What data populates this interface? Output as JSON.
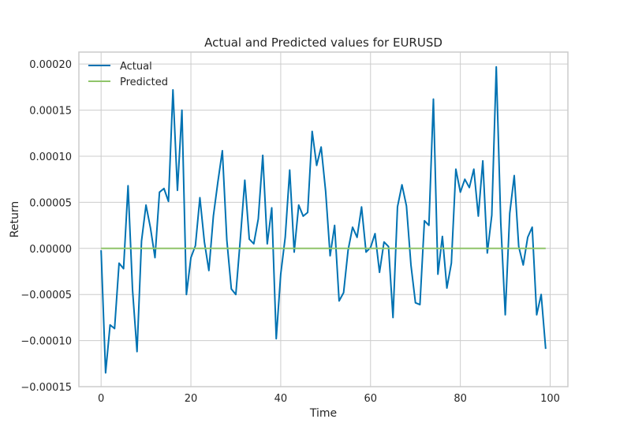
{
  "chart_data": {
    "type": "line",
    "title": "Actual and Predicted values for EURUSD",
    "xlabel": "Time",
    "ylabel": "Return",
    "xlim": [
      -4.95,
      103.95
    ],
    "ylim": [
      -0.00015,
      0.000213
    ],
    "x_ticks": [
      0,
      20,
      40,
      60,
      80,
      100
    ],
    "x_tick_labels": [
      "0",
      "20",
      "40",
      "60",
      "80",
      "100"
    ],
    "y_ticks": [
      -0.00015,
      -0.0001,
      -5e-05,
      0,
      5e-05,
      0.0001,
      0.00015,
      0.0002
    ],
    "y_tick_labels": [
      "−0.00015",
      "−0.00010",
      "−0.00005",
      "0.00000",
      "0.00005",
      "0.00010",
      "0.00015",
      "0.00020"
    ],
    "grid": true,
    "legend_position": "top-left",
    "x": [
      0,
      1,
      2,
      3,
      4,
      5,
      6,
      7,
      8,
      9,
      10,
      11,
      12,
      13,
      14,
      15,
      16,
      17,
      18,
      19,
      20,
      21,
      22,
      23,
      24,
      25,
      26,
      27,
      28,
      29,
      30,
      31,
      32,
      33,
      34,
      35,
      36,
      37,
      38,
      39,
      40,
      41,
      42,
      43,
      44,
      45,
      46,
      47,
      48,
      49,
      50,
      51,
      52,
      53,
      54,
      55,
      56,
      57,
      58,
      59,
      60,
      61,
      62,
      63,
      64,
      65,
      66,
      67,
      68,
      69,
      70,
      71,
      72,
      73,
      74,
      75,
      76,
      77,
      78,
      79,
      80,
      81,
      82,
      83,
      84,
      85,
      86,
      87,
      88,
      89,
      90,
      91,
      92,
      93,
      94,
      95,
      96,
      97,
      98,
      99
    ],
    "series": [
      {
        "name": "Actual",
        "color": "#0072b2",
        "values": [
          -2e-06,
          -0.000135,
          -8.3e-05,
          -8.7e-05,
          -1.6e-05,
          -2.2e-05,
          6.8e-05,
          -4.5e-05,
          -0.000112,
          8e-06,
          4.7e-05,
          2.2e-05,
          -1e-05,
          6.1e-05,
          6.5e-05,
          5.1e-05,
          0.000172,
          6.3e-05,
          0.00015,
          -5e-05,
          -1e-05,
          3e-06,
          5.5e-05,
          7e-06,
          -2.4e-05,
          3.5e-05,
          7.2e-05,
          0.000106,
          9e-06,
          -4.4e-05,
          -5e-05,
          1e-05,
          7.4e-05,
          1e-05,
          5e-06,
          3.2e-05,
          0.000101,
          5e-06,
          4.4e-05,
          -9.8e-05,
          -2.8e-05,
          1.2e-05,
          8.5e-05,
          -4e-06,
          4.7e-05,
          3.5e-05,
          3.9e-05,
          0.000127,
          9e-05,
          0.00011,
          6.2e-05,
          -8e-06,
          2.5e-05,
          -5.7e-05,
          -4.8e-05,
          -2e-06,
          2.3e-05,
          1.2e-05,
          4.5e-05,
          -4e-06,
          1e-06,
          1.6e-05,
          -2.6e-05,
          7e-06,
          2e-06,
          -7.5e-05,
          4.5e-05,
          6.9e-05,
          4.6e-05,
          -1.8e-05,
          -5.9e-05,
          -6.1e-05,
          3e-05,
          2.5e-05,
          0.000162,
          -2.8e-05,
          1.3e-05,
          -4.3e-05,
          -1.6e-05,
          8.6e-05,
          6.1e-05,
          7.5e-05,
          6.6e-05,
          8.6e-05,
          3.5e-05,
          9.5e-05,
          -5e-06,
          3.6e-05,
          0.000197,
          2.8e-05,
          -7.2e-05,
          3.8e-05,
          7.9e-05,
          2e-06,
          -1.8e-05,
          1.2e-05,
          2.3e-05,
          -7.2e-05,
          -5e-05,
          -0.000109
        ]
      },
      {
        "name": "Predicted",
        "color": "#8fc46a",
        "values": [
          0,
          0,
          0,
          0,
          0,
          0,
          0,
          0,
          0,
          0,
          0,
          0,
          0,
          0,
          0,
          0,
          0,
          0,
          0,
          0,
          0,
          0,
          0,
          0,
          0,
          0,
          0,
          0,
          0,
          0,
          0,
          0,
          0,
          0,
          0,
          0,
          0,
          0,
          0,
          0,
          0,
          0,
          0,
          0,
          0,
          0,
          0,
          0,
          0,
          0,
          0,
          0,
          0,
          0,
          0,
          0,
          0,
          0,
          0,
          0,
          0,
          0,
          0,
          0,
          0,
          0,
          0,
          0,
          0,
          0,
          0,
          0,
          0,
          0,
          0,
          0,
          0,
          0,
          0,
          0,
          0,
          0,
          0,
          0,
          0,
          0,
          0,
          0,
          0,
          0,
          0,
          0,
          0,
          0,
          0,
          0,
          0,
          0,
          0,
          0
        ]
      }
    ]
  }
}
